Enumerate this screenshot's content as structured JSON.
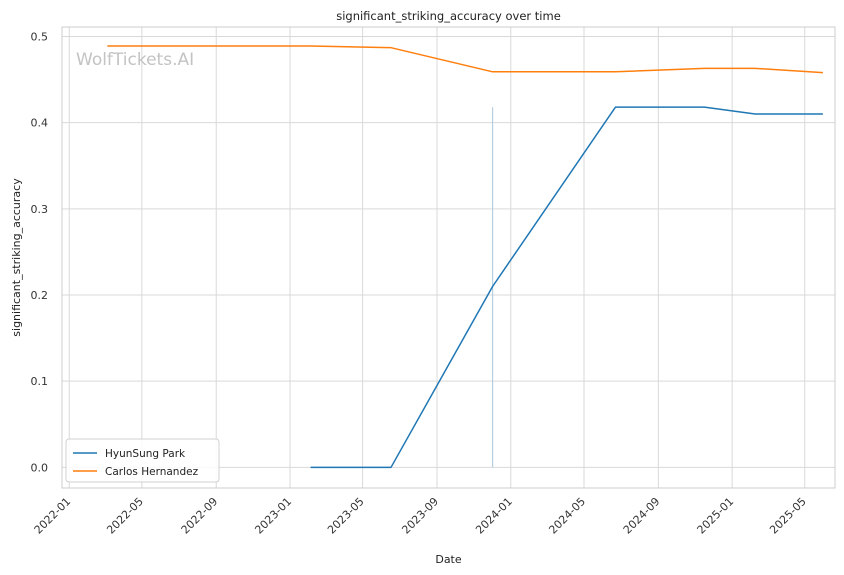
{
  "chart_data": {
    "type": "line",
    "title": "significant_striking_accuracy over time",
    "xlabel": "Date",
    "ylabel": "significant_striking_accuracy",
    "watermark": "WolfTickets.AI",
    "x_ticks": [
      "2022-01",
      "2022-05",
      "2022-09",
      "2023-01",
      "2023-05",
      "2023-09",
      "2024-01",
      "2024-05",
      "2024-09",
      "2025-01",
      "2025-05"
    ],
    "y_ticks": [
      "0.0",
      "0.1",
      "0.2",
      "0.3",
      "0.4",
      "0.5"
    ],
    "xlim": [
      "2021-12-20",
      "2025-06-20"
    ],
    "ylim": [
      -0.024,
      0.511
    ],
    "grid": true,
    "legend_position": "lower-left",
    "series": [
      {
        "name": "HyunSung Park",
        "color": "#1f77b4",
        "points": [
          {
            "x": "2023-02-04",
            "y": 0.0
          },
          {
            "x": "2023-06-17",
            "y": 0.0
          },
          {
            "x": "2023-12-02",
            "y": 0.21
          },
          {
            "x": "2024-06-22",
            "y": 0.418
          },
          {
            "x": "2024-11-16",
            "y": 0.418
          },
          {
            "x": "2025-02-08",
            "y": 0.41
          },
          {
            "x": "2025-05-31",
            "y": 0.41
          }
        ]
      },
      {
        "name": "Carlos Hernandez",
        "color": "#ff7f0e",
        "points": [
          {
            "x": "2022-03-05",
            "y": 0.489
          },
          {
            "x": "2023-02-04",
            "y": 0.489
          },
          {
            "x": "2023-06-17",
            "y": 0.487
          },
          {
            "x": "2023-12-02",
            "y": 0.459
          },
          {
            "x": "2024-06-22",
            "y": 0.459
          },
          {
            "x": "2024-11-16",
            "y": 0.463
          },
          {
            "x": "2025-02-08",
            "y": 0.463
          },
          {
            "x": "2025-05-31",
            "y": 0.458
          }
        ]
      }
    ],
    "annotations": [
      {
        "type": "vline",
        "x": "2023-12-02",
        "y_from": 0.0,
        "y_to": 0.418,
        "color": "#a9c7dd"
      }
    ]
  }
}
